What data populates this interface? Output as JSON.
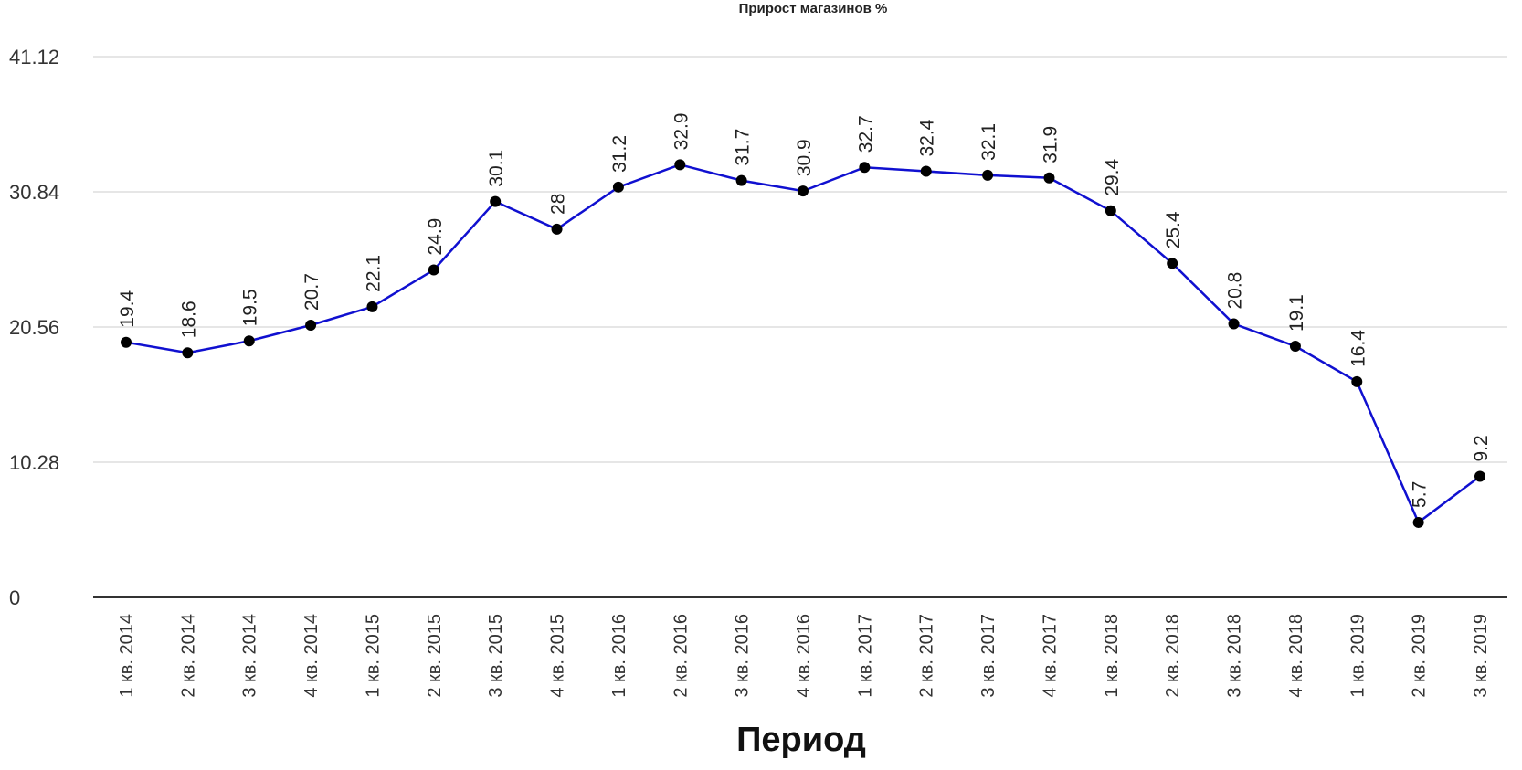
{
  "chart_data": {
    "type": "line",
    "title": "Прирост магазинов %",
    "xlabel": "Период",
    "ylabel": "",
    "ylim": [
      0,
      41.12
    ],
    "yticks": [
      "0",
      "10.28",
      "20.56",
      "30.84",
      "41.12"
    ],
    "grid": true,
    "categories": [
      "1 кв. 2014",
      "2 кв. 2014",
      "3 кв. 2014",
      "4 кв. 2014",
      "1 кв. 2015",
      "2 кв. 2015",
      "3 кв. 2015",
      "4 кв. 2015",
      "1 кв. 2016",
      "2 кв. 2016",
      "3 кв. 2016",
      "4 кв. 2016",
      "1 кв. 2017",
      "2 кв. 2017",
      "3 кв. 2017",
      "4 кв. 2017",
      "1 кв. 2018",
      "2 кв. 2018",
      "3 кв. 2018",
      "4 кв. 2018",
      "1 кв. 2019",
      "2 кв. 2019",
      "3 кв. 2019"
    ],
    "series": [
      {
        "values": [
          19.4,
          18.6,
          19.5,
          20.7,
          22.1,
          24.9,
          30.1,
          28,
          31.2,
          32.9,
          31.7,
          30.9,
          32.7,
          32.4,
          32.1,
          31.9,
          29.4,
          25.4,
          20.8,
          19.1,
          16.4,
          5.7,
          9.2
        ],
        "color": "#1010d0"
      }
    ]
  }
}
